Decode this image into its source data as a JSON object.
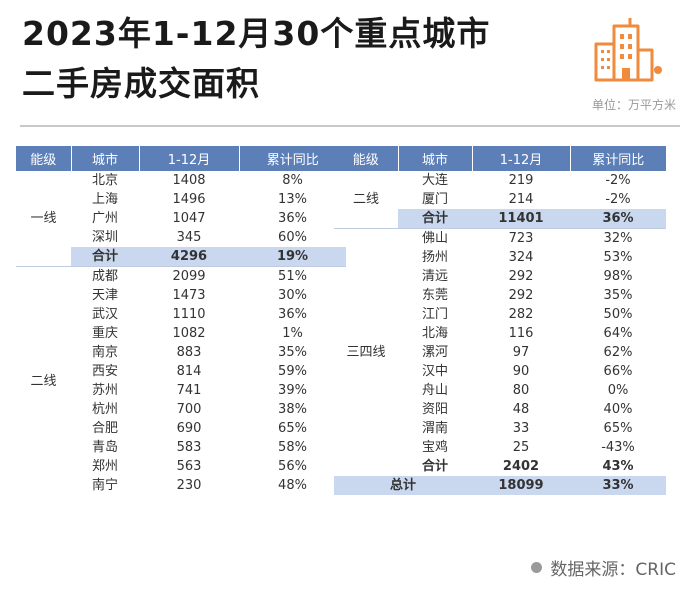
{
  "title": {
    "line1": "2023年1-12月30个重点城市",
    "line2": "二手房成交面积"
  },
  "unit": "单位：万平方米",
  "source": "数据来源：CRIC",
  "headers": [
    "能级",
    "城市",
    "1-12月",
    "累计同比"
  ],
  "left": {
    "tier1": {
      "label": "一线",
      "rows": [
        [
          "北京",
          "1408",
          "8%"
        ],
        [
          "上海",
          "1496",
          "13%"
        ],
        [
          "广州",
          "1047",
          "36%"
        ],
        [
          "深圳",
          "345",
          "60%"
        ]
      ],
      "total": [
        "合计",
        "4296",
        "19%"
      ]
    },
    "tier2": {
      "label": "二线",
      "rows": [
        [
          "成都",
          "2099",
          "51%"
        ],
        [
          "天津",
          "1473",
          "30%"
        ],
        [
          "武汉",
          "1110",
          "36%"
        ],
        [
          "重庆",
          "1082",
          "1%"
        ],
        [
          "南京",
          "883",
          "35%"
        ],
        [
          "西安",
          "814",
          "59%"
        ],
        [
          "苏州",
          "741",
          "39%"
        ],
        [
          "杭州",
          "700",
          "38%"
        ],
        [
          "合肥",
          "690",
          "65%"
        ],
        [
          "青岛",
          "583",
          "58%"
        ],
        [
          "郑州",
          "563",
          "56%"
        ],
        [
          "南宁",
          "230",
          "48%"
        ]
      ]
    }
  },
  "right": {
    "tier2": {
      "label": "二线",
      "rows": [
        [
          "大连",
          "219",
          "-2%"
        ],
        [
          "厦门",
          "214",
          "-2%"
        ]
      ],
      "total": [
        "合计",
        "11401",
        "36%"
      ]
    },
    "tier34": {
      "label": "三四线",
      "rows": [
        [
          "佛山",
          "723",
          "32%"
        ],
        [
          "扬州",
          "324",
          "53%"
        ],
        [
          "清远",
          "292",
          "98%"
        ],
        [
          "东莞",
          "292",
          "35%"
        ],
        [
          "江门",
          "282",
          "50%"
        ],
        [
          "北海",
          "116",
          "64%"
        ],
        [
          "漯河",
          "97",
          "62%"
        ],
        [
          "汉中",
          "90",
          "66%"
        ],
        [
          "舟山",
          "80",
          "0%"
        ],
        [
          "资阳",
          "48",
          "40%"
        ],
        [
          "渭南",
          "33",
          "65%"
        ],
        [
          "宝鸡",
          "25",
          "-43%"
        ]
      ],
      "total": [
        "合计",
        "2402",
        "43%"
      ]
    },
    "grand_total": [
      "总计",
      "18099",
      "33%"
    ]
  }
}
